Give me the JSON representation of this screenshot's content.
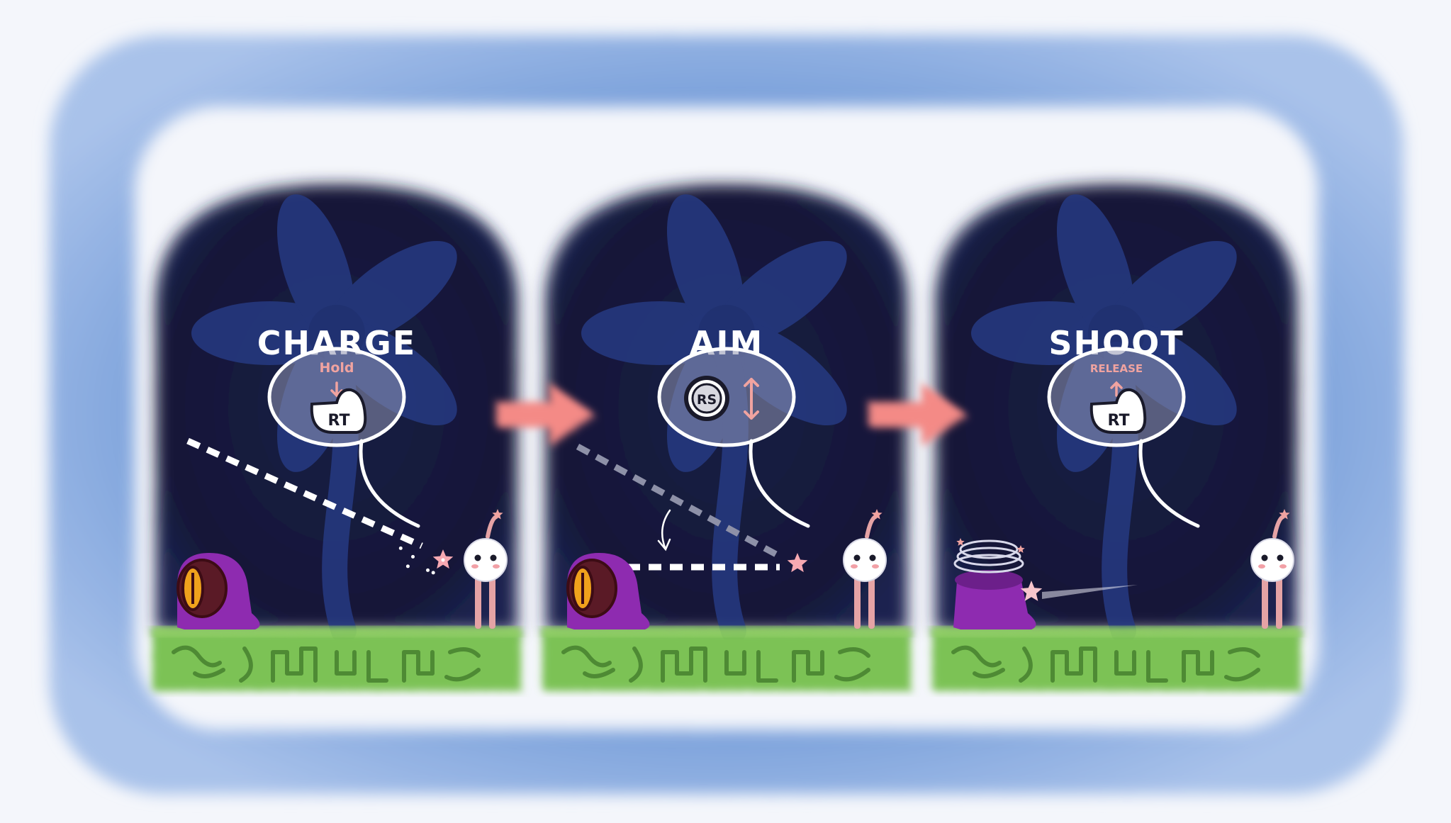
{
  "panels": [
    {
      "id": "charge",
      "title": "CHARGE",
      "hint": "Hold",
      "hint_arrow": "down",
      "button": "RT",
      "button_kind": "trigger",
      "state": "charging"
    },
    {
      "id": "aim",
      "title": "AIM",
      "hint": "",
      "button": "RS",
      "button_kind": "stick",
      "state": "aiming"
    },
    {
      "id": "shoot",
      "title": "SHOOT",
      "hint": "RELEASE",
      "hint_arrow": "up",
      "button": "RT",
      "button_kind": "trigger",
      "state": "hit"
    }
  ],
  "step_arrows": 2,
  "colors": {
    "frame_blue": "#7ea3dc",
    "night_sky": "#141a3e",
    "flower": "#263a82",
    "grass": "#7cc254",
    "grass_dark": "#4e8a34",
    "arrow": "#f48a86",
    "pink_hint": "#f0a3a0",
    "enemy": "#8e2bb0",
    "enemy_eye": "#f0a21c"
  },
  "icons": [
    "trigger-button-icon",
    "right-stick-icon",
    "star-projectile-icon",
    "arrow-right-icon"
  ]
}
